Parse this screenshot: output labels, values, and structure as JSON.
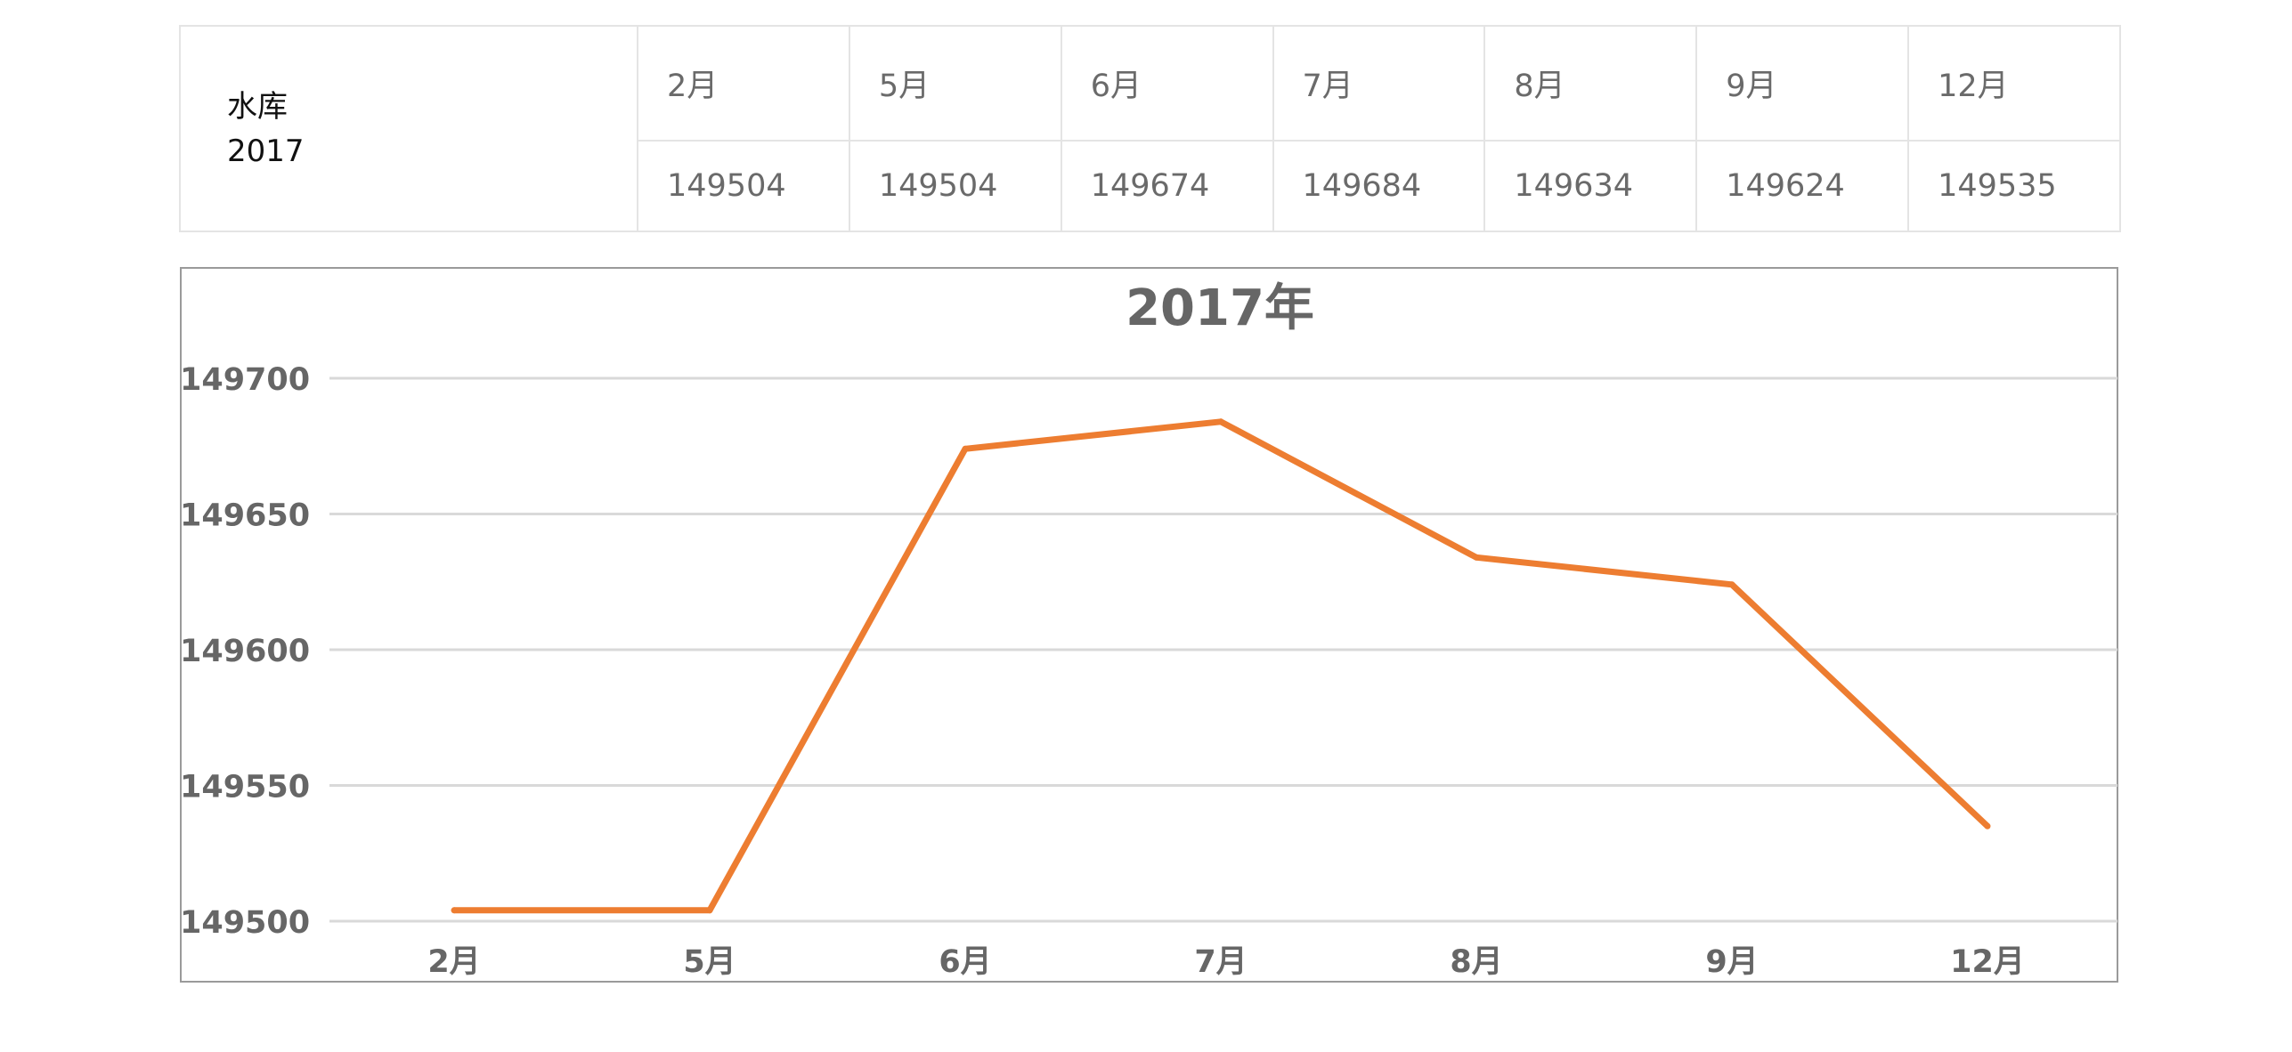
{
  "table": {
    "label_line1": "水库",
    "label_line2": "2017",
    "months": [
      "2月",
      "5月",
      "6月",
      "7月",
      "8月",
      "9月",
      "12月"
    ],
    "values": [
      "149504",
      "149504",
      "149674",
      "149684",
      "149634",
      "149624",
      "149535"
    ]
  },
  "chart_data": {
    "type": "line",
    "title": "2017年",
    "categories": [
      "2月",
      "5月",
      "6月",
      "7月",
      "8月",
      "9月",
      "12月"
    ],
    "series": [
      {
        "values": [
          149504,
          149504,
          149674,
          149684,
          149634,
          149624,
          149535
        ],
        "color": "#ed7d31"
      }
    ],
    "ylim": [
      149500,
      149700
    ],
    "yticks": [
      149500,
      149550,
      149600,
      149650,
      149700
    ],
    "grid": true,
    "gridColor": "#d9d9d9",
    "legend": "none"
  }
}
